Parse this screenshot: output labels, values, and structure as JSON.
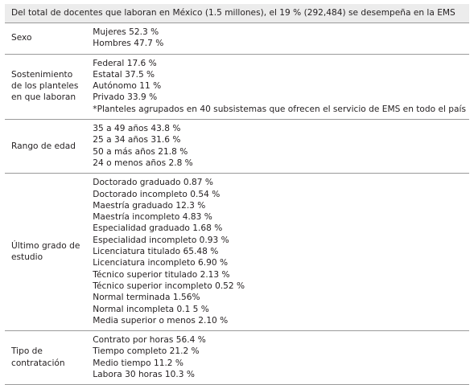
{
  "header": {
    "title": "Del total de docentes que laboran en México (1.5 millones), el 19 % (292,484) se desempeña en la EMS"
  },
  "table": {
    "rows": [
      {
        "label": "Sexo",
        "items": [
          "Mujeres 52.3 %",
          "Hombres 47.7 %"
        ]
      },
      {
        "label": "Sostenimiento de los planteles en que laboran",
        "items": [
          "Federal 17.6 %",
          "Estatal 37.5 %",
          "Autónomo 11 %",
          "Privado 33.9 %",
          "*Planteles agrupados en 40 subsistemas que ofrecen el servicio de EMS en todo el país"
        ]
      },
      {
        "label": "Rango de edad",
        "items": [
          "35 a 49 años 43.8 %",
          "25 a 34 años 31.6 %",
          "50 a más años 21.8 %",
          "24 o menos años 2.8 %"
        ]
      },
      {
        "label": "Último grado de estudio",
        "items": [
          "Doctorado graduado 0.87 %",
          "Doctorado incompleto 0.54 %",
          "Maestría graduado 12.3 %",
          "Maestría incompleto 4.83 %",
          "Especialidad graduado 1.68 %",
          "Especialidad incompleto 0.93 %",
          "Licenciatura titulado 65.48 %",
          "Licenciatura incompleto 6.90 %",
          "Técnico superior titulado 2.13 %",
          "Técnico superior incompleto 0.52 %",
          "Normal terminada 1.56%",
          "Normal incompleta 0.1 5 %",
          "Media superior o menos 2.10 %"
        ]
      },
      {
        "label": "Tipo de contratación",
        "items": [
          "Contrato por horas 56.4 %",
          "Tiempo completo 21.2 %",
          "Medio tiempo 11.2 %",
          "Labora 30 horas 10.3 %"
        ]
      }
    ]
  }
}
